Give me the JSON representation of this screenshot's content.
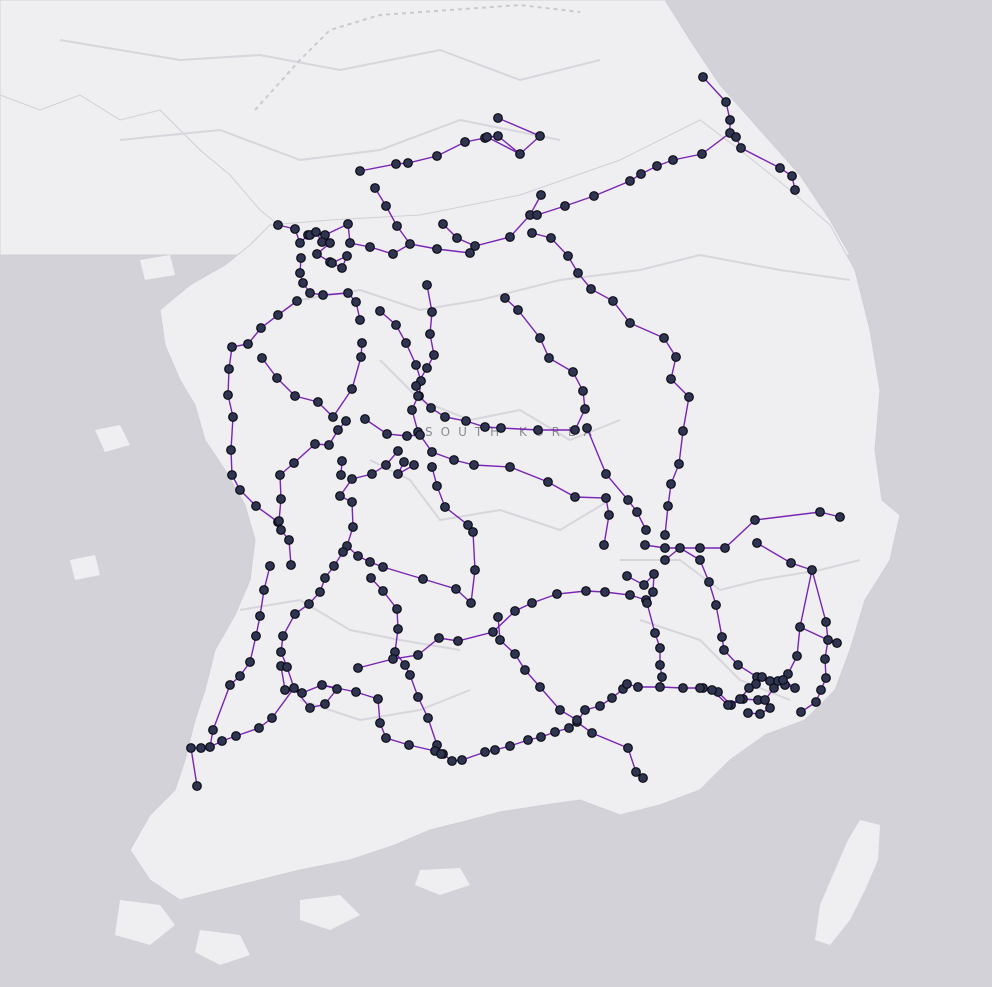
{
  "map": {
    "country_label": "SOUTH KOREA",
    "colors": {
      "sea": "#d2d2d8",
      "land": "#efeff1",
      "edge": "#6a0dad",
      "node_fill": "#2f3550",
      "node_stroke": "#0b0b16"
    }
  }
}
